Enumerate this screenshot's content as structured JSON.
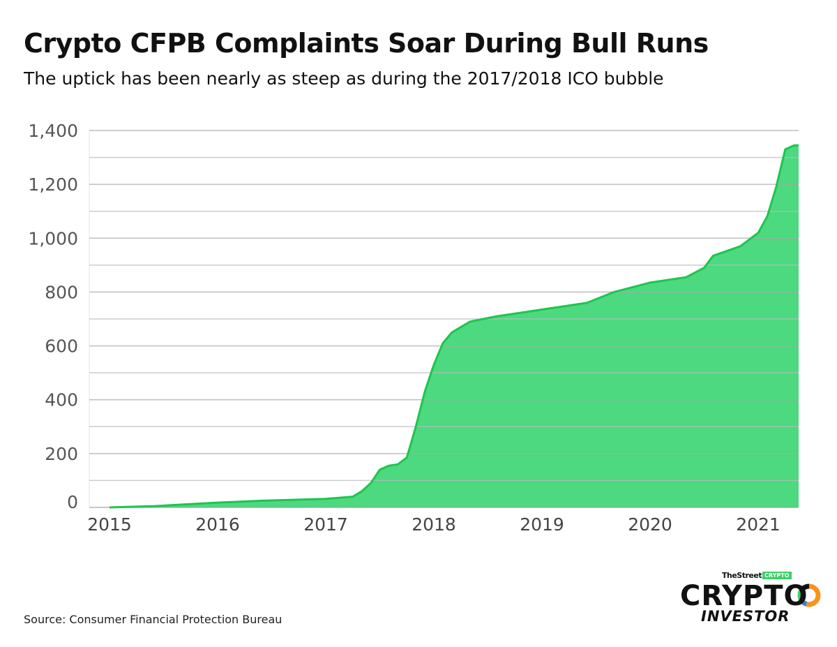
{
  "title": "Crypto CFPB Complaints Soar During Bull Runs",
  "subtitle": "The uptick has been nearly as steep as during the 2017/2018 ICO bubble",
  "source": "Source: Consumer Financial Protection Bureau",
  "logo": {
    "top": "TheStreet",
    "badge": "CRYPTO",
    "main": "CRYPTO",
    "sub": "INVESTOR"
  },
  "colors": {
    "fill": "#4cd97f",
    "line": "#1fc44f",
    "grid": "#c8c8c8",
    "text": "#555555"
  },
  "chart_data": {
    "type": "area",
    "title": "Crypto CFPB Complaints Soar During Bull Runs",
    "ylim": [
      0,
      1400
    ],
    "yticks": [
      0,
      200,
      400,
      600,
      800,
      1000,
      1200,
      1400
    ],
    "ytick_labels": [
      "0",
      "200",
      "400",
      "600",
      "800",
      "1,000",
      "1,200",
      "1,400"
    ],
    "xticks": [
      "2015",
      "2016",
      "2017",
      "2018",
      "2019",
      "2020",
      "2021"
    ],
    "xlim": [
      "2014-10",
      "2021-05"
    ],
    "grid": true,
    "x": [
      "2015-01",
      "2015-06",
      "2016-01",
      "2016-06",
      "2017-01",
      "2017-04",
      "2017-05",
      "2017-06",
      "2017-07",
      "2017-08",
      "2017-09",
      "2017-10",
      "2017-11",
      "2017-12",
      "2018-01",
      "2018-02",
      "2018-03",
      "2018-05",
      "2018-08",
      "2019-01",
      "2019-06",
      "2019-09",
      "2020-01",
      "2020-05",
      "2020-07",
      "2020-08",
      "2020-11",
      "2021-01",
      "2021-02",
      "2021-03",
      "2021-04",
      "2021-05"
    ],
    "values": [
      0,
      5,
      18,
      25,
      32,
      40,
      60,
      90,
      140,
      155,
      160,
      185,
      300,
      430,
      530,
      610,
      650,
      690,
      710,
      735,
      760,
      800,
      835,
      855,
      890,
      935,
      970,
      1020,
      1080,
      1190,
      1330,
      1345
    ]
  }
}
